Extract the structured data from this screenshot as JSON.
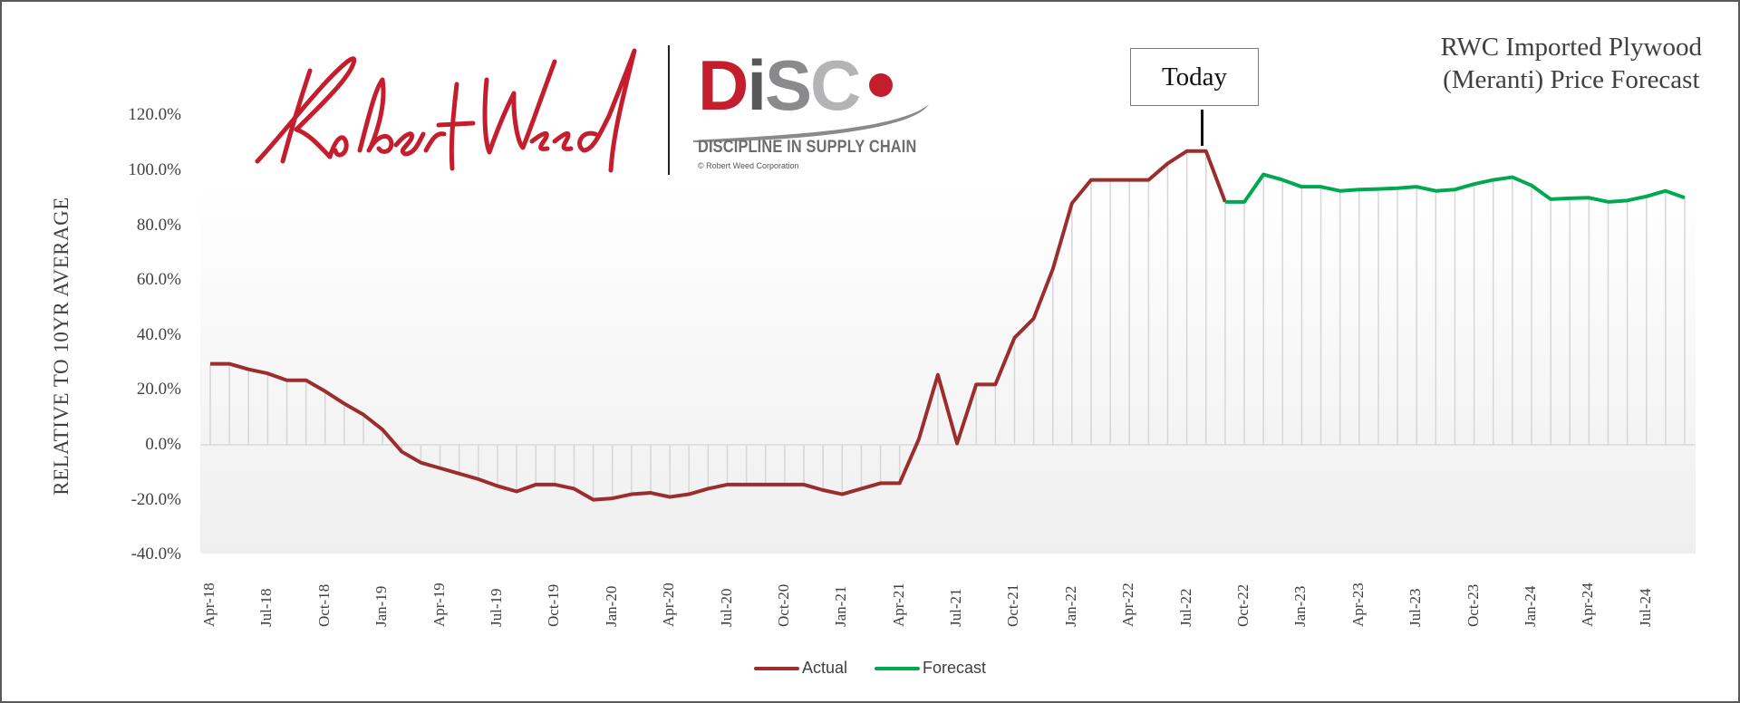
{
  "chart_data": {
    "type": "line",
    "title": "RWC Imported Plywood (Meranti) Price Forecast",
    "title_lines": [
      "RWC Imported Plywood",
      "(Meranti) Price Forecast"
    ],
    "xlabel": "",
    "ylabel": "RELATIVE TO 10YR AVERAGE",
    "ylim": [
      -40,
      120
    ],
    "yticks": [
      "120.0%",
      "100.0%",
      "80.0%",
      "60.0%",
      "40.0%",
      "20.0%",
      "0.0%",
      "-20.0%",
      "-40.0%"
    ],
    "ytick_values": [
      120,
      100,
      80,
      60,
      40,
      20,
      0,
      -20,
      -40
    ],
    "xtick_labels": [
      "Apr-18",
      "Jul-18",
      "Oct-18",
      "Jan-19",
      "Apr-19",
      "Jul-19",
      "Oct-19",
      "Jan-20",
      "Apr-20",
      "Jul-20",
      "Oct-20",
      "Jan-21",
      "Apr-21",
      "Jul-21",
      "Oct-21",
      "Jan-22",
      "Apr-22",
      "Jul-22",
      "Oct-22",
      "Jan-23",
      "Apr-23",
      "Jul-23",
      "Oct-23",
      "Jan-24",
      "Apr-24",
      "Jul-24"
    ],
    "grid": "vertical drop lines to zero per point",
    "legend_position": "bottom",
    "annotation": "Today",
    "annotation_at": "Aug-22",
    "series": [
      {
        "name": "Actual",
        "color": "#9b2d2d",
        "start": "Apr-18",
        "values": [
          29.5,
          29.5,
          27.5,
          26,
          23.5,
          23.5,
          19.5,
          15,
          11,
          5.5,
          -2.5,
          -6.5,
          -8.5,
          -10.5,
          -12.5,
          -15,
          -17,
          -14.5,
          -14.5,
          -16,
          -20,
          -19.5,
          -18,
          -17.5,
          -19,
          -18,
          -16,
          -14.5,
          -14.5,
          -14.5,
          -14.5,
          -14.5,
          -16.5,
          -18,
          -16,
          -14,
          -14,
          2,
          25.5,
          0.5,
          22,
          22,
          39,
          46,
          64,
          88,
          96.5,
          96.5,
          96.5,
          96.5,
          102.5,
          107,
          107,
          88.5
        ]
      },
      {
        "name": "Forecast",
        "color": "#00a84f",
        "start": "Sep-22",
        "values": [
          88.5,
          88.5,
          98.5,
          96.5,
          94,
          94,
          92.5,
          93,
          93.2,
          93.5,
          94,
          92.5,
          93,
          95,
          96.5,
          97.5,
          94.5,
          89.5,
          89.8,
          90,
          88.5,
          89,
          90.5,
          92.5,
          90
        ]
      }
    ]
  },
  "header": {
    "logo_script": "Robert Weed",
    "disc_letters": [
      "D",
      "i",
      "S",
      "C"
    ],
    "disc_tagline": "DISCIPLINE IN SUPPLY CHAIN",
    "disc_copyright": "© Robert Weed Corporation"
  },
  "annotation": {
    "today_label": "Today"
  },
  "legend": {
    "items": [
      {
        "label": "Actual",
        "color": "#9b2d2d"
      },
      {
        "label": "Forecast",
        "color": "#00a84f"
      }
    ]
  },
  "colors": {
    "brand_red": "#c41e2e",
    "disc_dark": "#58585a",
    "disc_mid": "#8a8a8c",
    "disc_light": "#b4b4b6"
  }
}
